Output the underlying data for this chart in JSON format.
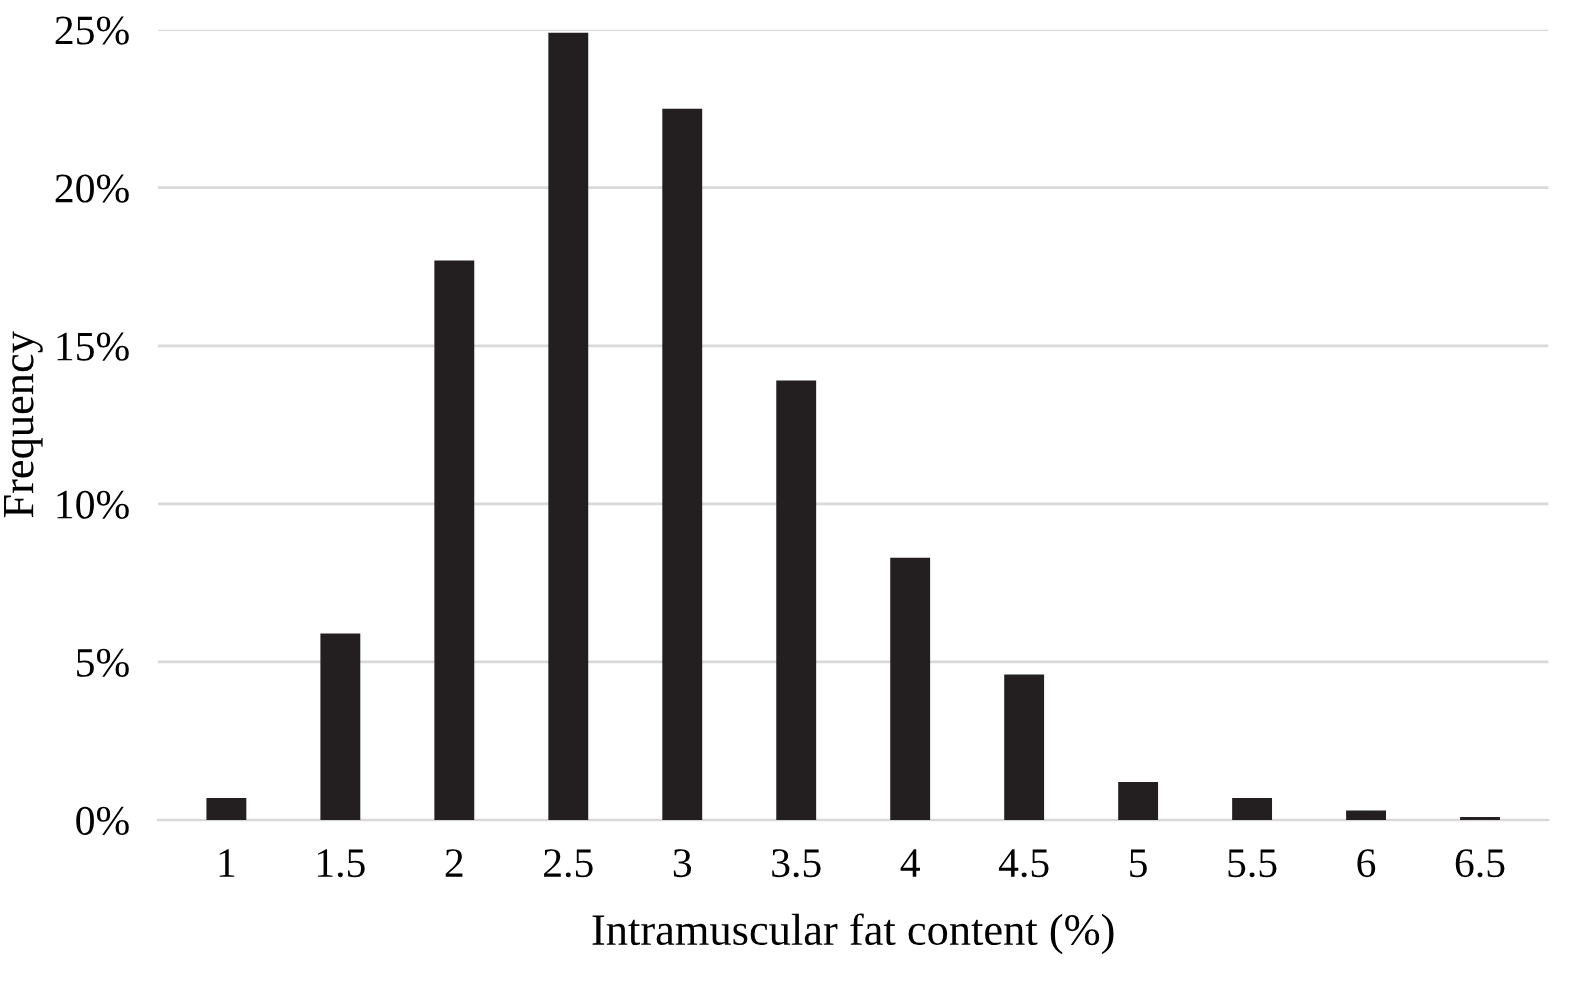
{
  "chart_data": {
    "type": "bar",
    "xlabel": "Intramuscular fat content (%)",
    "ylabel": "Frequency",
    "categories": [
      "1",
      "1.5",
      "2",
      "2.5",
      "3",
      "3.5",
      "4",
      "4.5",
      "5",
      "5.5",
      "6",
      "6.5"
    ],
    "values": [
      0.7,
      5.9,
      17.7,
      24.9,
      22.5,
      13.9,
      8.3,
      4.6,
      1.2,
      0.7,
      0.3,
      0.1
    ],
    "color": "#231f20",
    "ylim": [
      0,
      25
    ],
    "yticks": [
      {
        "value": 0,
        "label": "0%"
      },
      {
        "value": 5,
        "label": "5%"
      },
      {
        "value": 10,
        "label": "10%"
      },
      {
        "value": 15,
        "label": "15%"
      },
      {
        "value": 20,
        "label": "20%"
      },
      {
        "value": 25,
        "label": "25%"
      }
    ],
    "grid": "y"
  }
}
